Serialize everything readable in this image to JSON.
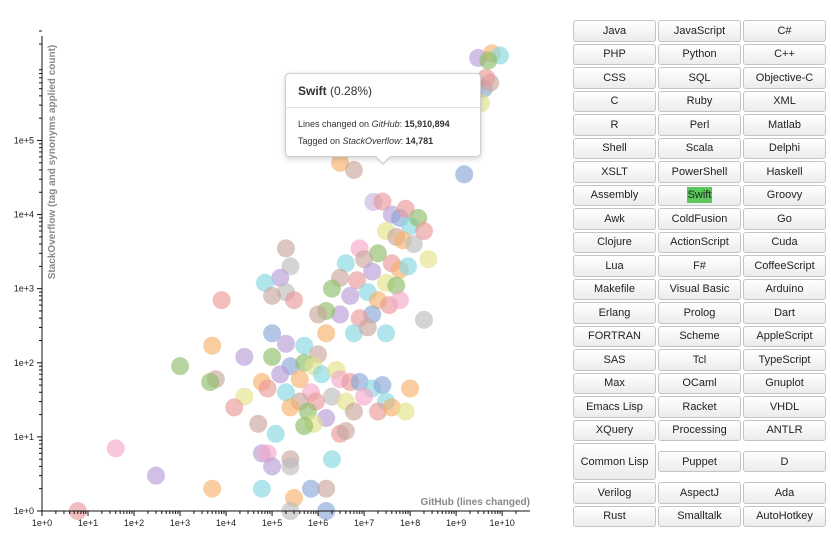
{
  "chart_data": {
    "type": "scatter",
    "xlabel": "GitHub (lines changed)",
    "ylabel": "StackOverflow (tag and synonyms applied count)",
    "x_scale": "log",
    "y_scale": "log",
    "xlim": [
      1,
      20000000000
    ],
    "ylim": [
      1,
      3000000
    ],
    "x_ticks": [
      "1e+0",
      "1e+1",
      "1e+2",
      "1e+3",
      "1e+4",
      "1e+5",
      "1e+6",
      "1e+7",
      "1e+8",
      "1e+9",
      "1e+10"
    ],
    "y_ticks": [
      "1e+0",
      "1e+1",
      "1e+2",
      "1e+3",
      "1e+4",
      "1e+5"
    ],
    "grid": false,
    "highlighted": {
      "name": "Swift",
      "share": "(0.28%)",
      "x": 15910894,
      "y": 14781
    },
    "points": [
      {
        "x": 3000000000,
        "y": 1300000,
        "c": "#b89cd8"
      },
      {
        "x": 6000000000,
        "y": 1500000,
        "c": "#f6b26b"
      },
      {
        "x": 9000000000,
        "y": 1400000,
        "c": "#86d8e0"
      },
      {
        "x": 5000000000,
        "y": 1200000,
        "c": "#8fbe6a"
      },
      {
        "x": 4000000000,
        "y": 500000,
        "c": "#8aa8d8"
      },
      {
        "x": 5500000000,
        "y": 600000,
        "c": "#c9a89c"
      },
      {
        "x": 4500000000,
        "y": 700000,
        "c": "#e99a9a"
      },
      {
        "x": 3500000000,
        "y": 320000,
        "c": "#e2e28a"
      },
      {
        "x": 2000000000,
        "y": 120000,
        "c": "#bdbdbd"
      },
      {
        "x": 1500000000,
        "y": 35000,
        "c": "#8aa8d8"
      },
      {
        "x": 30000000,
        "y": 600000,
        "c": "#8fbe6a"
      },
      {
        "x": 3000000,
        "y": 50000,
        "c": "#f6b26b"
      },
      {
        "x": 6000000,
        "y": 40000,
        "c": "#c9a89c"
      },
      {
        "x": 15910894,
        "y": 14781,
        "c": "#c8b6e2"
      },
      {
        "x": 25000000,
        "y": 15000,
        "c": "#e99a9a"
      },
      {
        "x": 40000000,
        "y": 10000,
        "c": "#b89cd8"
      },
      {
        "x": 60000000,
        "y": 9000,
        "c": "#8aa8d8"
      },
      {
        "x": 80000000,
        "y": 12000,
        "c": "#e99a9a"
      },
      {
        "x": 100000000,
        "y": 7000,
        "c": "#86d8e0"
      },
      {
        "x": 150000000,
        "y": 9000,
        "c": "#8fbe6a"
      },
      {
        "x": 30000000,
        "y": 6000,
        "c": "#e2e28a"
      },
      {
        "x": 50000000,
        "y": 5000,
        "c": "#c9a89c"
      },
      {
        "x": 70000000,
        "y": 4500,
        "c": "#f6b26b"
      },
      {
        "x": 120000000,
        "y": 4000,
        "c": "#bdbdbd"
      },
      {
        "x": 200000000,
        "y": 6000,
        "c": "#e99a9a"
      },
      {
        "x": 250000000,
        "y": 2500,
        "c": "#e2e28a"
      },
      {
        "x": 20000000,
        "y": 3000,
        "c": "#8fbe6a"
      },
      {
        "x": 8000000,
        "y": 3500,
        "c": "#f5a9c9"
      },
      {
        "x": 4000000,
        "y": 2200,
        "c": "#86d8e0"
      },
      {
        "x": 10000000,
        "y": 2500,
        "c": "#c9a89c"
      },
      {
        "x": 40000000,
        "y": 2200,
        "c": "#e99a9a"
      },
      {
        "x": 60000000,
        "y": 1800,
        "c": "#f6b26b"
      },
      {
        "x": 90000000,
        "y": 2000,
        "c": "#86d8e0"
      },
      {
        "x": 15000000,
        "y": 1700,
        "c": "#b89cd8"
      },
      {
        "x": 30000000,
        "y": 1200,
        "c": "#e2e28a"
      },
      {
        "x": 50000000,
        "y": 1100,
        "c": "#8fbe6a"
      },
      {
        "x": 7000000,
        "y": 1300,
        "c": "#e99a9a"
      },
      {
        "x": 3000000,
        "y": 1400,
        "c": "#c9a89c"
      },
      {
        "x": 2000000,
        "y": 1000,
        "c": "#8fbe6a"
      },
      {
        "x": 5000000,
        "y": 800,
        "c": "#b89cd8"
      },
      {
        "x": 12000000,
        "y": 900,
        "c": "#86d8e0"
      },
      {
        "x": 20000000,
        "y": 700,
        "c": "#f6b26b"
      },
      {
        "x": 35000000,
        "y": 600,
        "c": "#e99a9a"
      },
      {
        "x": 60000000,
        "y": 700,
        "c": "#f5a9c9"
      },
      {
        "x": 15000000,
        "y": 450,
        "c": "#8aa8d8"
      },
      {
        "x": 8000000,
        "y": 400,
        "c": "#e99a9a"
      },
      {
        "x": 3000000,
        "y": 450,
        "c": "#b89cd8"
      },
      {
        "x": 1500000,
        "y": 500,
        "c": "#8fbe6a"
      },
      {
        "x": 1000000,
        "y": 450,
        "c": "#c9a89c"
      },
      {
        "x": 200000000,
        "y": 380,
        "c": "#bdbdbd"
      },
      {
        "x": 6000000,
        "y": 250,
        "c": "#86d8e0"
      },
      {
        "x": 12000000,
        "y": 300,
        "c": "#c9a89c"
      },
      {
        "x": 30000000,
        "y": 250,
        "c": "#86d8e0"
      },
      {
        "x": 200000,
        "y": 3500,
        "c": "#c9a89c"
      },
      {
        "x": 250000,
        "y": 2000,
        "c": "#bdbdbd"
      },
      {
        "x": 150000,
        "y": 1400,
        "c": "#b89cd8"
      },
      {
        "x": 200000,
        "y": 900,
        "c": "#bdbdbd"
      },
      {
        "x": 70000,
        "y": 1200,
        "c": "#86d8e0"
      },
      {
        "x": 100000,
        "y": 800,
        "c": "#c9a89c"
      },
      {
        "x": 300000,
        "y": 700,
        "c": "#e99a9a"
      },
      {
        "x": 8000,
        "y": 700,
        "c": "#e99a9a"
      },
      {
        "x": 1500000,
        "y": 250,
        "c": "#f6b26b"
      },
      {
        "x": 100000,
        "y": 250,
        "c": "#8aa8d8"
      },
      {
        "x": 500000,
        "y": 170,
        "c": "#86d8e0"
      },
      {
        "x": 1000000,
        "y": 130,
        "c": "#c9a89c"
      },
      {
        "x": 200000,
        "y": 180,
        "c": "#b89cd8"
      },
      {
        "x": 5000,
        "y": 170,
        "c": "#f6b26b"
      },
      {
        "x": 25000,
        "y": 120,
        "c": "#b89cd8"
      },
      {
        "x": 1000,
        "y": 90,
        "c": "#8fbe6a"
      },
      {
        "x": 100000,
        "y": 120,
        "c": "#8fbe6a"
      },
      {
        "x": 250000,
        "y": 90,
        "c": "#8aa8d8"
      },
      {
        "x": 500000,
        "y": 100,
        "c": "#8fbe6a"
      },
      {
        "x": 800000,
        "y": 90,
        "c": "#e2e28a"
      },
      {
        "x": 150000,
        "y": 70,
        "c": "#b89cd8"
      },
      {
        "x": 400000,
        "y": 60,
        "c": "#f6b26b"
      },
      {
        "x": 1200000,
        "y": 70,
        "c": "#86d8e0"
      },
      {
        "x": 2500000,
        "y": 80,
        "c": "#e2e28a"
      },
      {
        "x": 3000000,
        "y": 60,
        "c": "#f5a9c9"
      },
      {
        "x": 5000000,
        "y": 55,
        "c": "#e99a9a"
      },
      {
        "x": 8000000,
        "y": 55,
        "c": "#8aa8d8"
      },
      {
        "x": 15000000,
        "y": 45,
        "c": "#86d8e0"
      },
      {
        "x": 25000000,
        "y": 50,
        "c": "#8aa8d8"
      },
      {
        "x": 100000000,
        "y": 45,
        "c": "#f6b26b"
      },
      {
        "x": 6000,
        "y": 60,
        "c": "#c9a89c"
      },
      {
        "x": 4500,
        "y": 55,
        "c": "#8fbe6a"
      },
      {
        "x": 60000,
        "y": 55,
        "c": "#f6b26b"
      },
      {
        "x": 80000,
        "y": 45,
        "c": "#e99a9a"
      },
      {
        "x": 200000,
        "y": 40,
        "c": "#86d8e0"
      },
      {
        "x": 700000,
        "y": 40,
        "c": "#f5a9c9"
      },
      {
        "x": 25000,
        "y": 35,
        "c": "#e2e28a"
      },
      {
        "x": 400000,
        "y": 30,
        "c": "#c9a89c"
      },
      {
        "x": 900000,
        "y": 30,
        "c": "#e99a9a"
      },
      {
        "x": 2000000,
        "y": 35,
        "c": "#bdbdbd"
      },
      {
        "x": 4000000,
        "y": 30,
        "c": "#e2e28a"
      },
      {
        "x": 10000000,
        "y": 35,
        "c": "#f5a9c9"
      },
      {
        "x": 30000000,
        "y": 30,
        "c": "#86d8e0"
      },
      {
        "x": 15000,
        "y": 25,
        "c": "#e99a9a"
      },
      {
        "x": 250000,
        "y": 25,
        "c": "#f6b26b"
      },
      {
        "x": 600000,
        "y": 22,
        "c": "#8fbe6a"
      },
      {
        "x": 6000000,
        "y": 22,
        "c": "#c9a89c"
      },
      {
        "x": 20000000,
        "y": 22,
        "c": "#e99a9a"
      },
      {
        "x": 40000000,
        "y": 25,
        "c": "#f6b26b"
      },
      {
        "x": 80000000,
        "y": 22,
        "c": "#e2e28a"
      },
      {
        "x": 1500000,
        "y": 18,
        "c": "#b89cd8"
      },
      {
        "x": 800000,
        "y": 15,
        "c": "#e2e28a"
      },
      {
        "x": 50000,
        "y": 15,
        "c": "#c9a89c"
      },
      {
        "x": 120000,
        "y": 11,
        "c": "#86d8e0"
      },
      {
        "x": 500000,
        "y": 14,
        "c": "#8fbe6a"
      },
      {
        "x": 3000000,
        "y": 11,
        "c": "#e99a9a"
      },
      {
        "x": 4000000,
        "y": 12,
        "c": "#c9a89c"
      },
      {
        "x": 60000,
        "y": 6,
        "c": "#b89cd8"
      },
      {
        "x": 80000,
        "y": 6,
        "c": "#f5a9c9"
      },
      {
        "x": 2000000,
        "y": 5,
        "c": "#86d8e0"
      },
      {
        "x": 250000,
        "y": 5,
        "c": "#c9a89c"
      },
      {
        "x": 100000,
        "y": 4,
        "c": "#b89cd8"
      },
      {
        "x": 250000,
        "y": 4,
        "c": "#bdbdbd"
      },
      {
        "x": 40,
        "y": 7,
        "c": "#f5a9c9"
      },
      {
        "x": 300,
        "y": 3,
        "c": "#b89cd8"
      },
      {
        "x": 5000,
        "y": 2,
        "c": "#f6b26b"
      },
      {
        "x": 60000,
        "y": 2,
        "c": "#86d8e0"
      },
      {
        "x": 300000,
        "y": 1.5,
        "c": "#f6b26b"
      },
      {
        "x": 700000,
        "y": 2,
        "c": "#8aa8d8"
      },
      {
        "x": 1500000,
        "y": 2,
        "c": "#c9a89c"
      },
      {
        "x": 6,
        "y": 1,
        "c": "#e99a9a"
      },
      {
        "x": 250000,
        "y": 1,
        "c": "#bdbdbd"
      },
      {
        "x": 1500000,
        "y": 1,
        "c": "#8aa8d8"
      }
    ]
  },
  "tooltip": {
    "name": "Swift",
    "share": "(0.28%)",
    "line1_label": "Lines changed on ",
    "line1_source": "GitHub",
    "line1_colon": ": ",
    "line1_value": "15,910,894",
    "line2_label": "Tagged on ",
    "line2_source": "StackOverflow",
    "line2_colon": ": ",
    "line2_value": "14,781"
  },
  "languages": [
    "Java",
    "JavaScript",
    "C#",
    "PHP",
    "Python",
    "C++",
    "CSS",
    "SQL",
    "Objective-C",
    "C",
    "Ruby",
    "XML",
    "R",
    "Perl",
    "Matlab",
    "Shell",
    "Scala",
    "Delphi",
    "XSLT",
    "PowerShell",
    "Haskell",
    "Assembly",
    "Swift",
    "Groovy",
    "Awk",
    "ColdFusion",
    "Go",
    "Clojure",
    "ActionScript",
    "Cuda",
    "Lua",
    "F#",
    "CoffeeScript",
    "Makefile",
    "Visual Basic",
    "Arduino",
    "Erlang",
    "Prolog",
    "Dart",
    "FORTRAN",
    "Scheme",
    "AppleScript",
    "SAS",
    "Tcl",
    "TypeScript",
    "Max",
    "OCaml",
    "Gnuplot",
    "Emacs Lisp",
    "Racket",
    "VHDL",
    "XQuery",
    "Processing",
    "ANTLR",
    "Common Lisp",
    "Puppet",
    "D",
    "Verilog",
    "AspectJ",
    "Ada",
    "Rust",
    "Smalltalk",
    "AutoHotkey"
  ],
  "selected_language": "Swift",
  "colors": {
    "highlight": "#5cc85c"
  }
}
